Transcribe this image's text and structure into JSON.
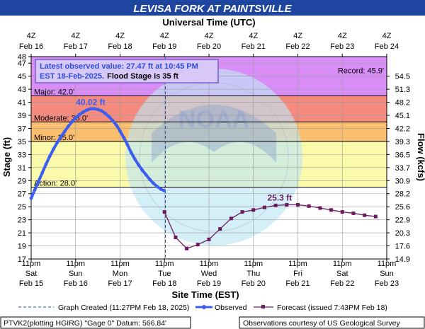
{
  "chart_data": {
    "type": "line",
    "title": "LEVISA FORK AT PAINTSVILLE",
    "top_axis_title": "Universal Time (UTC)",
    "xlabel": "Site Time (EST)",
    "ylabel": "Stage (ft)",
    "y2label": "Flow (kcfs)",
    "ylim": [
      17,
      48
    ],
    "xlim": [
      "Feb 15 11pm",
      "Feb 23 11pm"
    ],
    "y_ticks": [
      17,
      19,
      21,
      23,
      25,
      27,
      29,
      31,
      33,
      35,
      37,
      39,
      41,
      43,
      45,
      47,
      48
    ],
    "y2_ticks": [
      {
        "stage": 17,
        "label": "14.9"
      },
      {
        "stage": 19,
        "label": "17.6"
      },
      {
        "stage": 21,
        "label": "20.3"
      },
      {
        "stage": 23,
        "label": "22.9"
      },
      {
        "stage": 25,
        "label": "25.6"
      },
      {
        "stage": 27,
        "label": "28.2"
      },
      {
        "stage": 29,
        "label": "30.9"
      },
      {
        "stage": 31,
        "label": "33.7"
      },
      {
        "stage": 33,
        "label": "36.5"
      },
      {
        "stage": 35,
        "label": "39.3"
      },
      {
        "stage": 37,
        "label": "42.2"
      },
      {
        "stage": 39,
        "label": "45.1"
      },
      {
        "stage": 41,
        "label": "48.2"
      },
      {
        "stage": 43,
        "label": "51.3"
      },
      {
        "stage": 45,
        "label": "54.5"
      }
    ],
    "bottom_ticks": [
      {
        "time": "11pm",
        "day": "Sat",
        "date": "Feb 15"
      },
      {
        "time": "11pm",
        "day": "Sun",
        "date": "Feb 16"
      },
      {
        "time": "11pm",
        "day": "Mon",
        "date": "Feb 17"
      },
      {
        "time": "11pm",
        "day": "Tue",
        "date": "Feb 18"
      },
      {
        "time": "11pm",
        "day": "Wed",
        "date": "Feb 19"
      },
      {
        "time": "11pm",
        "day": "Thu",
        "date": "Feb 20"
      },
      {
        "time": "11pm",
        "day": "Fri",
        "date": "Feb 21"
      },
      {
        "time": "11pm",
        "day": "Sat",
        "date": "Feb 22"
      },
      {
        "time": "11pm",
        "day": "Sun",
        "date": "Feb 23"
      }
    ],
    "top_ticks": [
      {
        "time": "4Z",
        "date": "Feb 16"
      },
      {
        "time": "4Z",
        "date": "Feb 17"
      },
      {
        "time": "4Z",
        "date": "Feb 18"
      },
      {
        "time": "4Z",
        "date": "Feb 19"
      },
      {
        "time": "4Z",
        "date": "Feb 20"
      },
      {
        "time": "4Z",
        "date": "Feb 21"
      },
      {
        "time": "4Z",
        "date": "Feb 22"
      },
      {
        "time": "4Z",
        "date": "Feb 23"
      },
      {
        "time": "4Z",
        "date": "Feb 24"
      }
    ],
    "bands": [
      {
        "name": "Record",
        "from": 42,
        "to": 48,
        "color": "#d98ef7"
      },
      {
        "name": "Major",
        "from": 38,
        "to": 42,
        "color": "#f58a7e"
      },
      {
        "name": "Moderate",
        "from": 35,
        "to": 38,
        "color": "#f9be6e"
      },
      {
        "name": "Minor",
        "from": 28,
        "to": 35,
        "color": "#fafaaa"
      }
    ],
    "thresholds": [
      {
        "text": "Record: 45.9'",
        "value": 45.9
      },
      {
        "text": "Major: 42.0'",
        "value": 42.0
      },
      {
        "text": "Moderate: 38.0'",
        "value": 38.0
      },
      {
        "text": "Minor: 35.0'",
        "value": 35.0
      },
      {
        "text": "Action: 28.0'",
        "value": 28.0
      }
    ],
    "series": [
      {
        "name": "Observed",
        "color": "#3b5ef0",
        "x_days": [
          0.0,
          0.083,
          0.167,
          0.25,
          0.333,
          0.417,
          0.5,
          0.583,
          0.667,
          0.75,
          0.833,
          0.917,
          1.0,
          1.083,
          1.167,
          1.25,
          1.333,
          1.417,
          1.5,
          1.583,
          1.667,
          1.75,
          1.833,
          1.917,
          2.0,
          2.083,
          2.167,
          2.25,
          2.333,
          2.417,
          2.5,
          2.583,
          2.667,
          2.75,
          2.833,
          2.917,
          2.99
        ],
        "stage": [
          26.3,
          27.6,
          28.9,
          30.2,
          31.5,
          32.7,
          33.8,
          34.8,
          35.7,
          36.5,
          37.3,
          38.0,
          38.6,
          39.1,
          39.5,
          39.8,
          40.0,
          40.02,
          39.9,
          39.7,
          39.3,
          38.8,
          38.2,
          37.5,
          36.6,
          35.6,
          34.5,
          33.3,
          32.3,
          31.4,
          30.6,
          29.9,
          29.2,
          28.6,
          28.1,
          27.7,
          27.47
        ]
      },
      {
        "name": "Forecast (issued 7:43PM Feb 18)",
        "color": "#6b1b5e",
        "x_days": [
          3.0,
          3.25,
          3.5,
          3.75,
          4.0,
          4.25,
          4.5,
          4.75,
          5.0,
          5.25,
          5.5,
          5.75,
          6.0,
          6.25,
          6.5,
          6.75,
          7.0,
          7.25,
          7.5,
          7.75
        ],
        "stage": [
          24.2,
          20.3,
          18.6,
          19.2,
          20.0,
          21.6,
          23.2,
          24.2,
          24.5,
          24.9,
          25.2,
          25.3,
          25.3,
          25.1,
          24.8,
          24.5,
          24.2,
          24.0,
          23.7,
          23.5
        ]
      }
    ],
    "peak_label": "40.02 ft",
    "forecast_peak_label": "25.3 ft",
    "graph_created_day": 3.02,
    "info_box": {
      "line1": "Latest observed value: 27.47 ft at 10:45 PM",
      "line2": "EST 18-Feb-2025.",
      "line2b": "Flood Stage is 35 ft"
    },
    "legend": {
      "created": "Graph Created (11:27PM Feb 18, 2025)",
      "observed": "Observed",
      "forecast": "Forecast (issued 7:43PM Feb 18)"
    },
    "footer_left": "PTVK2(plotting HGIRG) \"Gage 0\" Datum: 566.84'",
    "footer_right": "Observations courtesy of US Geological Survey",
    "watermark": "NOAA"
  }
}
